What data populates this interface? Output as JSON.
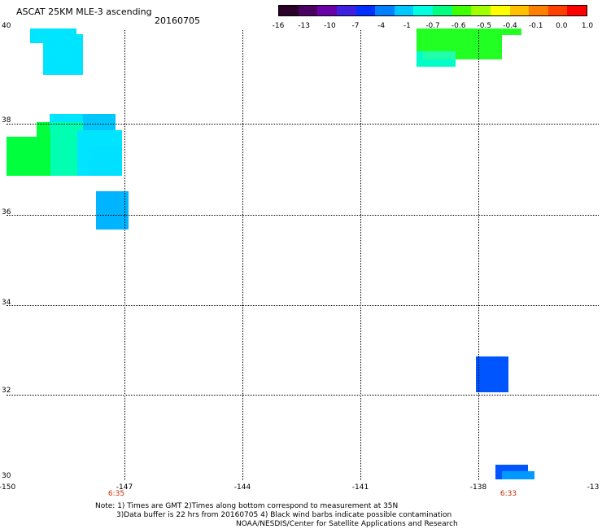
{
  "title": "ASCAT 25KM MLE-3 ascending",
  "date": "20160705",
  "colorbar": {
    "labels": [
      "-16",
      "-13",
      "-10",
      "-7",
      "-4",
      "-1",
      "-0.7",
      "-0.6",
      "-0.5",
      "-0.4",
      "-0.1",
      "0.0",
      "1.0"
    ],
    "colors": [
      "#2a0028",
      "#4a0060",
      "#6a00a8",
      "#4020e0",
      "#0030ff",
      "#0080ff",
      "#00c8ff",
      "#00ffe0",
      "#00ff80",
      "#40ff00",
      "#a0ff00",
      "#ffff00",
      "#ffc000",
      "#ff8000",
      "#ff4000",
      "#ff0000"
    ]
  },
  "axes": {
    "lat_labels": [
      "40",
      "38",
      "36",
      "34",
      "32",
      "30"
    ],
    "lon_labels": [
      "-150",
      "-147",
      "-144",
      "-141",
      "-138",
      "-13"
    ],
    "times": [
      "6:35",
      "6:33"
    ]
  },
  "notes": {
    "line1": "Note: 1) Times are GMT 2)Times along bottom correspond to measurement at 35N",
    "line2": "3)Data buffer is 22 hrs from 20160705 4) Black wind barbs indicate possible contamination",
    "line3": "NOAA/NESDIS/Center for Satellite Applications and Research"
  },
  "swath_colors": {
    "cyan": "#00e5ff",
    "light_blue": "#00c0ff",
    "green": "#00ff3c",
    "blue": "#0050ff",
    "aqua_green": "#00ffc8"
  }
}
